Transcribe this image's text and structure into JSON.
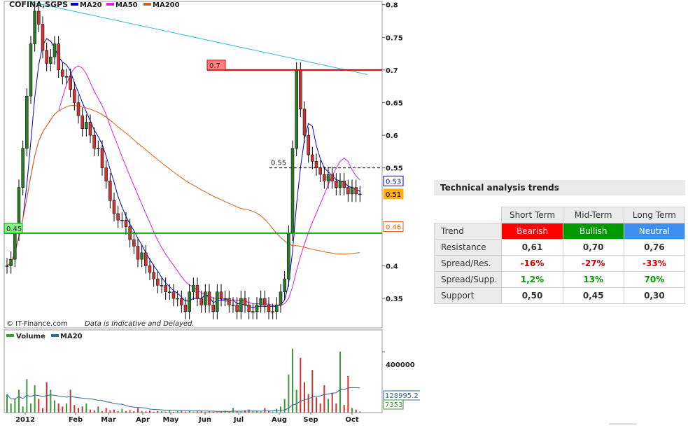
{
  "chart_data": [
    {
      "type": "candlestick",
      "title": "COFINA,SGPS",
      "legend": [
        {
          "name": "MA20",
          "color": "#0000cc"
        },
        {
          "name": "MA50",
          "color": "#e020e0"
        },
        {
          "name": "MA200",
          "color": "#e06010"
        }
      ],
      "legend_placement": "top-left",
      "xlabels": [
        "2012",
        "Feb",
        "Mar",
        "Apr",
        "May",
        "Jun",
        "Jul",
        "Aug",
        "Sep",
        "Oct"
      ],
      "ylim": [
        0.305,
        0.805
      ],
      "yticks": [
        0.8,
        0.75,
        0.7,
        0.65,
        0.6,
        0.55,
        0.4,
        0.35
      ],
      "ytick_labels": [
        "0.8",
        "0.75",
        "0.7",
        "0.65",
        "0.6",
        "0.55",
        "0.4",
        "0.35"
      ],
      "grid": false,
      "last_close": 0.51,
      "price_markers": [
        {
          "value": 0.53,
          "label": "0.53",
          "color": "#0000cc"
        },
        {
          "value": 0.51,
          "label": "0.51",
          "color": "#ffb000"
        },
        {
          "value": 0.46,
          "label": "0.46",
          "color": "#e06010"
        }
      ],
      "levels": [
        {
          "value": 0.7,
          "label": "0.7",
          "color": "#dd0000",
          "style": "solid"
        },
        {
          "value": 0.55,
          "label": "0.55",
          "color": "#000000",
          "style": "dashed"
        },
        {
          "value": 0.45,
          "label": "0.45",
          "color": "#00aa00",
          "style": "solid"
        }
      ],
      "close_series": [
        0.4,
        0.41,
        0.45,
        0.52,
        0.58,
        0.66,
        0.74,
        0.79,
        0.77,
        0.73,
        0.71,
        0.72,
        0.74,
        0.7,
        0.69,
        0.69,
        0.67,
        0.65,
        0.63,
        0.61,
        0.62,
        0.6,
        0.58,
        0.58,
        0.55,
        0.53,
        0.5,
        0.48,
        0.47,
        0.47,
        0.46,
        0.44,
        0.43,
        0.41,
        0.42,
        0.4,
        0.39,
        0.38,
        0.37,
        0.37,
        0.36,
        0.36,
        0.35,
        0.35,
        0.34,
        0.33,
        0.36,
        0.37,
        0.35,
        0.34,
        0.36,
        0.34,
        0.33,
        0.36,
        0.35,
        0.35,
        0.34,
        0.34,
        0.33,
        0.35,
        0.34,
        0.33,
        0.33,
        0.34,
        0.35,
        0.34,
        0.33,
        0.33,
        0.34,
        0.36,
        0.38,
        0.45,
        0.58,
        0.7,
        0.64,
        0.6,
        0.57,
        0.56,
        0.55,
        0.54,
        0.53,
        0.54,
        0.53,
        0.52,
        0.53,
        0.52,
        0.51,
        0.52,
        0.51,
        0.51
      ]
    },
    {
      "type": "bar",
      "title": "Volume",
      "legend": [
        {
          "name": "Volume",
          "color": "#3a9a3a"
        },
        {
          "name": "MA20",
          "color": "#336699"
        }
      ],
      "ylim": [
        0,
        520000
      ],
      "yticks": [
        400000
      ],
      "ytick_labels": [
        "400000"
      ],
      "markers": [
        {
          "value": 128995.2,
          "label": "128995.2",
          "color": "#336699"
        },
        {
          "value": 7353,
          "label": "7353",
          "color": "#3a9a3a"
        }
      ],
      "values": [
        120000,
        60000,
        90000,
        150000,
        40000,
        220000,
        60000,
        180000,
        90000,
        30000,
        200000,
        150000,
        80000,
        60000,
        40000,
        60000,
        150000,
        50000,
        30000,
        40000,
        60000,
        20000,
        15000,
        40000,
        10000,
        30000,
        15000,
        20000,
        10000,
        25000,
        10000,
        15000,
        8000,
        30000,
        10000,
        8000,
        12000,
        6000,
        10000,
        8000,
        6000,
        15000,
        5000,
        10000,
        12000,
        6000,
        10000,
        4000,
        8000,
        12000,
        5000,
        10000,
        6000,
        5000,
        8000,
        12000,
        6000,
        30000,
        10000,
        6000,
        15000,
        20000,
        8000,
        10000,
        6000,
        30000,
        10000,
        6000,
        25000,
        40000,
        90000,
        250000,
        420000,
        150000,
        360000,
        200000,
        120000,
        280000,
        100000,
        60000,
        180000,
        90000,
        130000,
        60000,
        400000,
        50000,
        240000,
        30000,
        20000,
        7353
      ]
    }
  ],
  "watermark": "© IT-Finance.com",
  "disclaimer": "Data is Indicative and Delayed.",
  "trends": {
    "title": "Technical analysis trends",
    "columns": [
      "Short Term",
      "Mid-Term",
      "Long Term"
    ],
    "rows": [
      {
        "label": "Trend",
        "values": [
          "Bearish",
          "Bullish",
          "Neutral"
        ]
      },
      {
        "label": "Resistance",
        "values": [
          "0,61",
          "0,70",
          "0,76"
        ]
      },
      {
        "label": "Spread/Res.",
        "values": [
          "-16%",
          "-27%",
          "-33%"
        ]
      },
      {
        "label": "Spread/Supp.",
        "values": [
          "1,2%",
          "13%",
          "70%"
        ]
      },
      {
        "label": "Support",
        "values": [
          "0,50",
          "0,45",
          "0,30"
        ]
      }
    ],
    "trend_colors": [
      "#ff0000",
      "#009900",
      "#3a8ff1"
    ]
  }
}
